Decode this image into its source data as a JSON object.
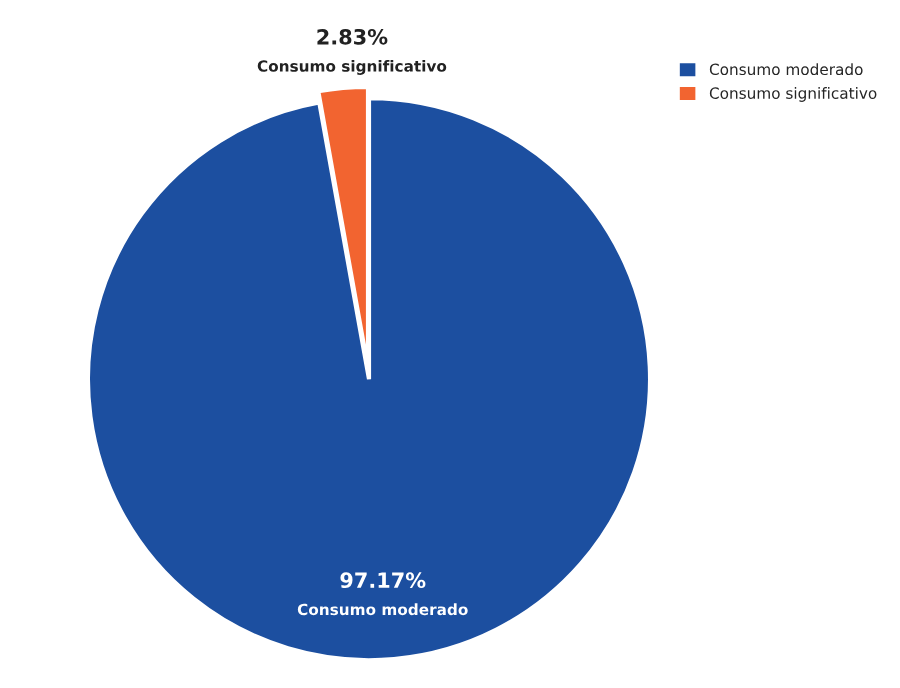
{
  "chart_data": {
    "type": "pie",
    "categories": [
      "Consumo moderado",
      "Consumo significativo"
    ],
    "values": [
      97.17,
      2.83
    ],
    "colors": [
      "#1c4fa0",
      "#f26430"
    ],
    "value_labels": [
      "97.17%",
      "2.83%"
    ],
    "legend": "top right"
  }
}
